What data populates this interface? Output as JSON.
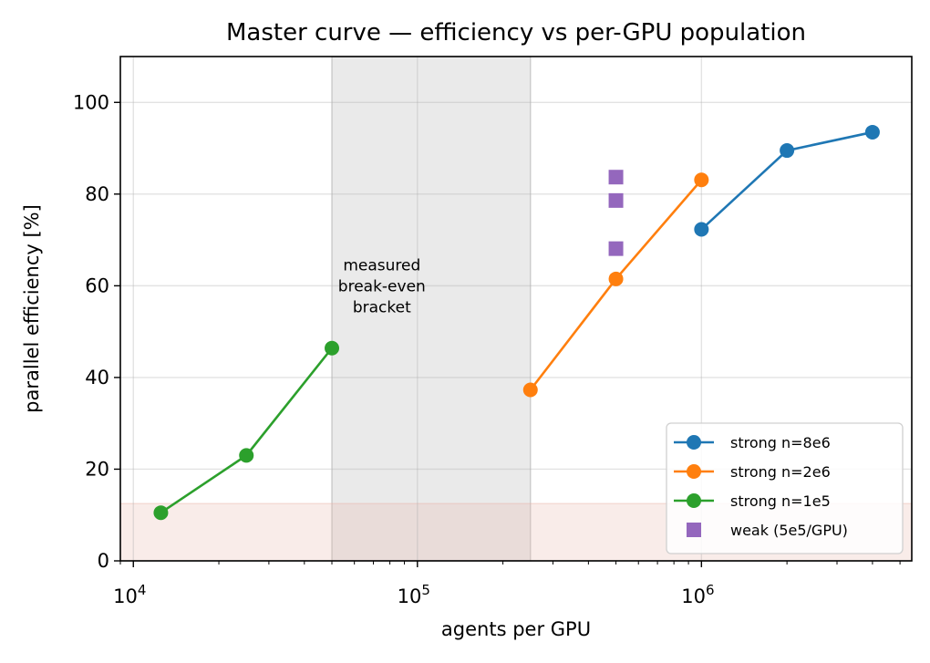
{
  "chart_data": {
    "type": "line",
    "title": "Master curve — efficiency vs per-GPU population",
    "xlabel": "agents per GPU",
    "ylabel": "parallel efficiency [%]",
    "xscale": "log",
    "xlim": [
      9000,
      5500000
    ],
    "ylim": [
      0,
      110
    ],
    "grid": true,
    "legend_position": "lower-right",
    "x_ticks": [
      {
        "value": 10000,
        "base": "10",
        "exp": "4"
      },
      {
        "value": 100000,
        "base": "10",
        "exp": "5"
      },
      {
        "value": 1000000,
        "base": "10",
        "exp": "6"
      }
    ],
    "y_ticks": [
      {
        "value": 0,
        "label": "0"
      },
      {
        "value": 20,
        "label": "20"
      },
      {
        "value": 40,
        "label": "40"
      },
      {
        "value": 60,
        "label": "60"
      },
      {
        "value": 80,
        "label": "80"
      },
      {
        "value": 100,
        "label": "100"
      }
    ],
    "series": [
      {
        "name": "strong n=8e6",
        "marker": "circle",
        "line": true,
        "color": "#1f77b4",
        "x": [
          1000000,
          2000000,
          4000000
        ],
        "y": [
          72.3,
          89.5,
          93.5
        ]
      },
      {
        "name": "strong n=2e6",
        "marker": "circle",
        "line": true,
        "color": "#ff7f0e",
        "x": [
          250000,
          500000,
          1000000
        ],
        "y": [
          37.3,
          61.5,
          83.1
        ]
      },
      {
        "name": "strong n=1e5",
        "marker": "circle",
        "line": true,
        "color": "#2ca02c",
        "x": [
          12500,
          25000,
          50000
        ],
        "y": [
          10.5,
          23.0,
          46.4
        ]
      },
      {
        "name": "weak (5e5/GPU)",
        "marker": "square",
        "line": false,
        "color": "#9467bd",
        "x": [
          500000,
          500000,
          500000
        ],
        "y": [
          83.7,
          78.6,
          68.1
        ]
      }
    ],
    "shaded_regions": [
      {
        "kind": "vertical-band",
        "x": [
          50000,
          250000
        ],
        "color": "#d3d3d3"
      },
      {
        "kind": "horizontal-band",
        "y": [
          0,
          12.5
        ],
        "color": "#e8b4a8"
      }
    ],
    "annotations": [
      {
        "lines": [
          "measured",
          "break-even",
          "bracket"
        ],
        "x": 100000,
        "y": 60
      }
    ]
  }
}
